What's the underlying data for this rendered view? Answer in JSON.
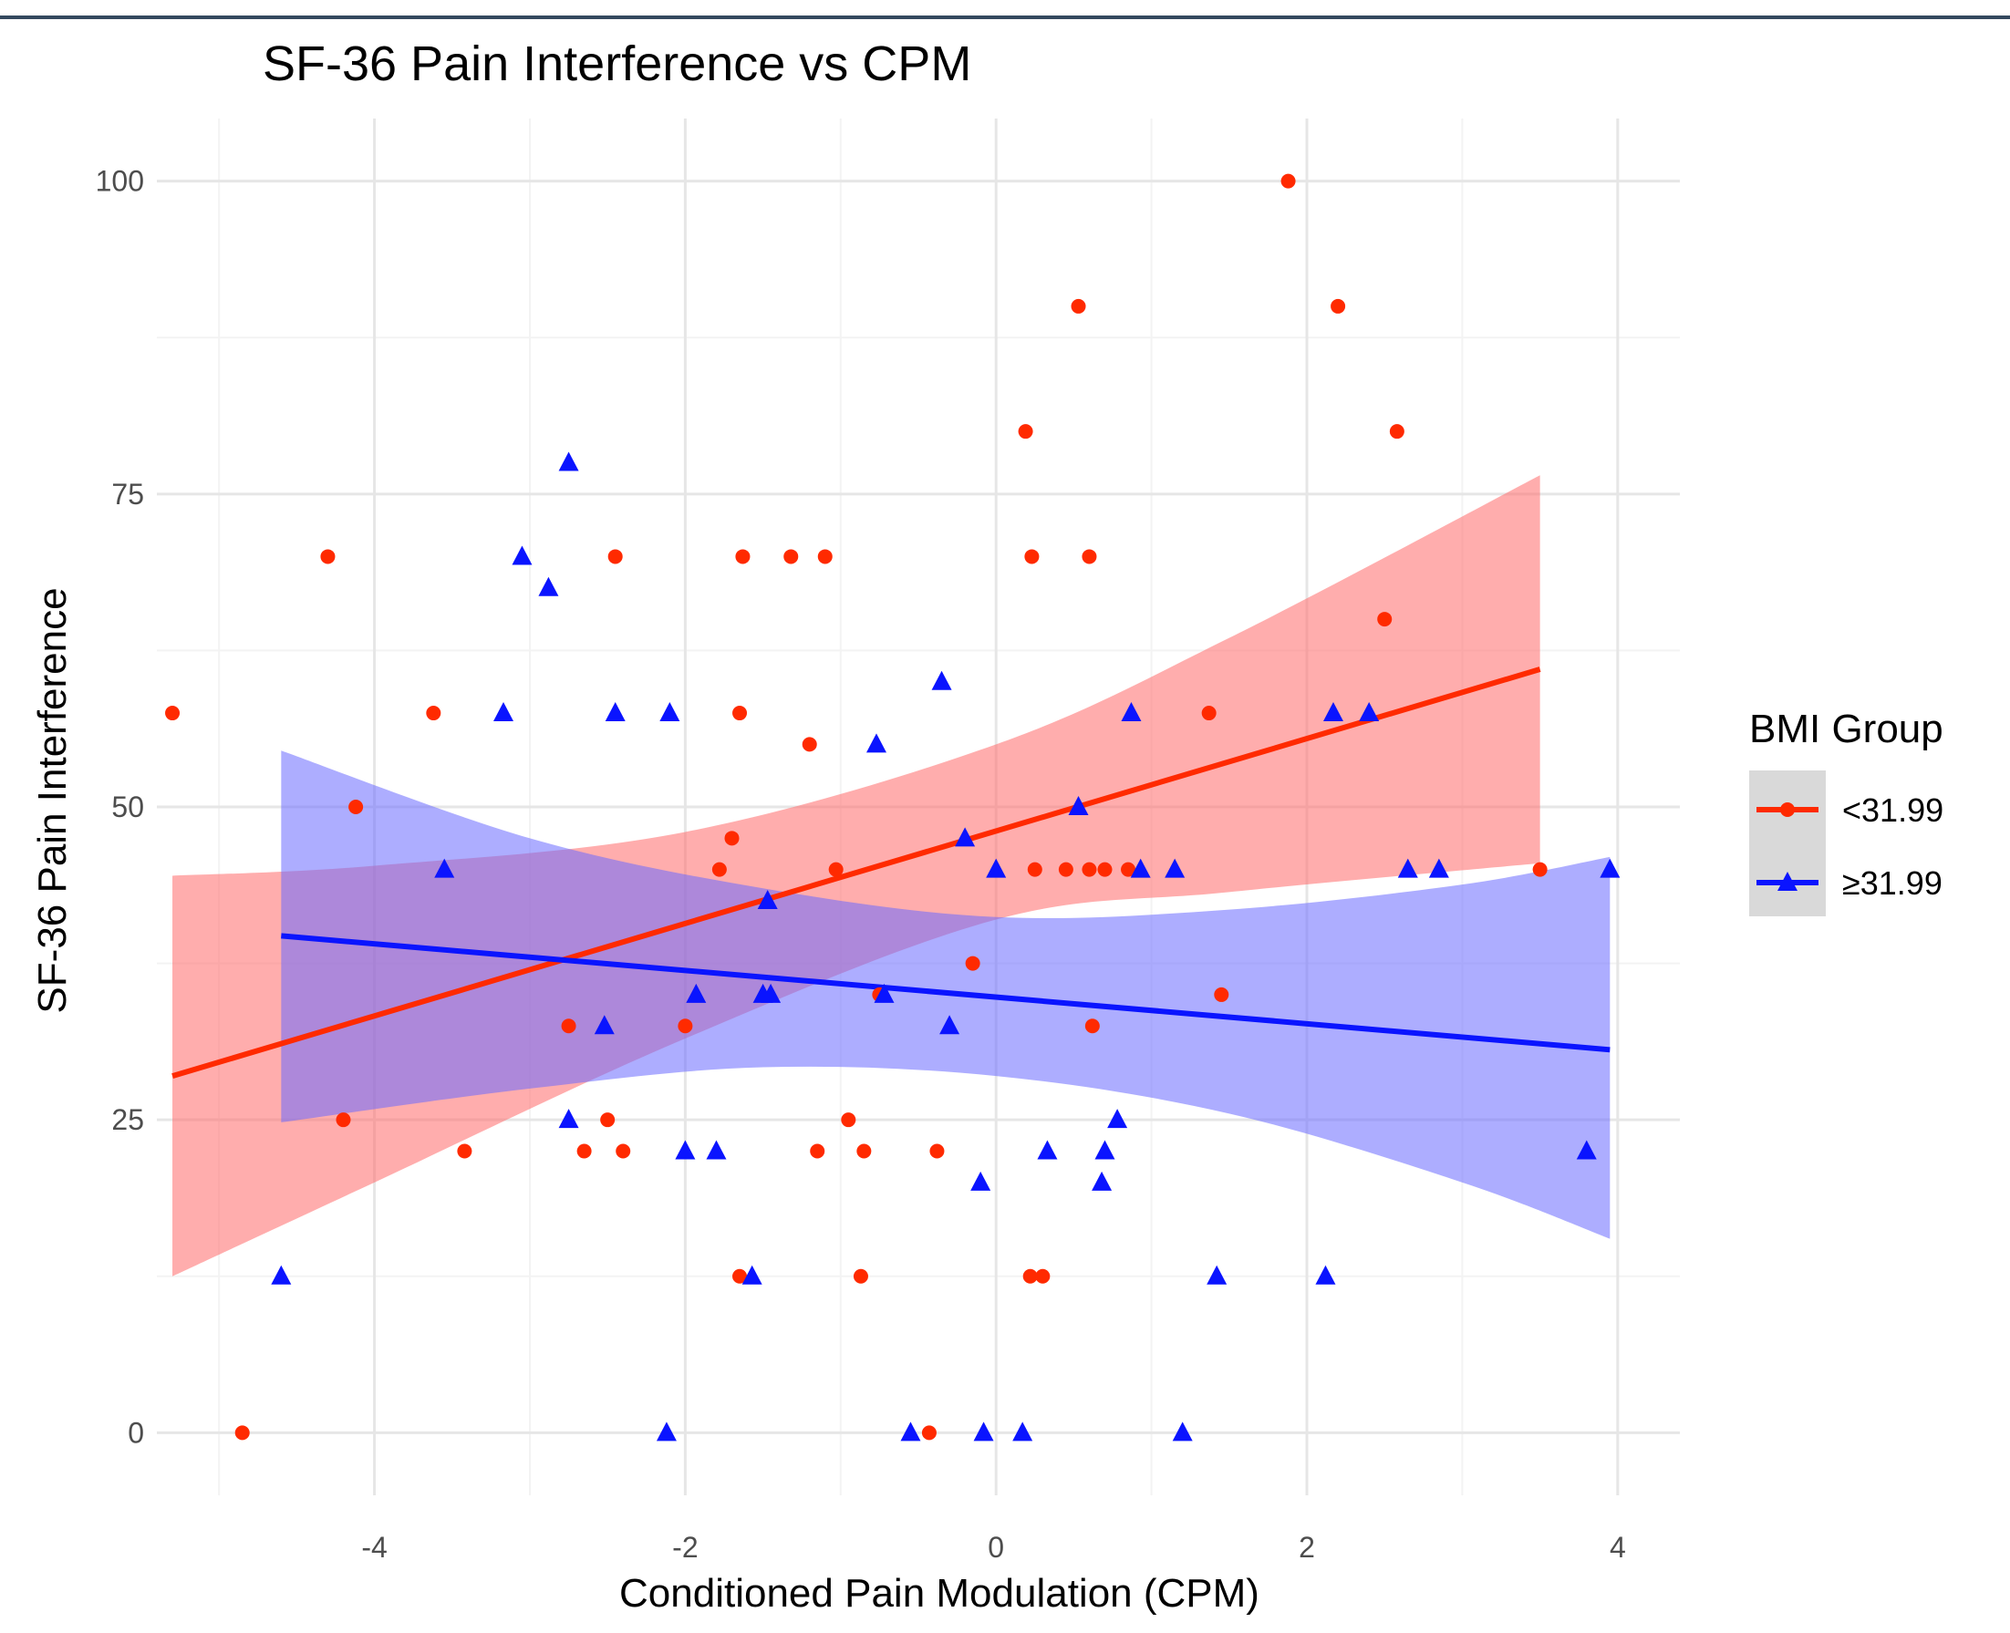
{
  "chart_data": {
    "type": "scatter",
    "title": "SF-36 Pain Interference vs CPM",
    "xlabel": "Conditioned Pain Modulation (CPM)",
    "ylabel": "SF-36 Pain Interference",
    "xlim": [
      -5.4,
      4.4
    ],
    "ylim": [
      -5,
      105
    ],
    "x_ticks": [
      -4,
      -2,
      0,
      2,
      4
    ],
    "y_ticks": [
      0,
      25,
      50,
      75,
      100
    ],
    "x_tick_labels": [
      "-4",
      "-2",
      "0",
      "2",
      "4"
    ],
    "y_tick_labels": [
      "0",
      "25",
      "50",
      "75",
      "100"
    ],
    "grid": true,
    "legend": {
      "title": "BMI Group",
      "position": "right"
    },
    "series": [
      {
        "name": "<31.99",
        "marker": "circle",
        "color": "#ff2a00",
        "band_color": "#ff6a6a",
        "points": [
          [
            -5.3,
            57.5
          ],
          [
            -4.85,
            0
          ],
          [
            -4.3,
            70
          ],
          [
            -4.2,
            25
          ],
          [
            -4.12,
            50
          ],
          [
            -3.62,
            57.5
          ],
          [
            -3.42,
            22.5
          ],
          [
            -2.75,
            32.5
          ],
          [
            -2.65,
            22.5
          ],
          [
            -2.5,
            25
          ],
          [
            -2.45,
            70
          ],
          [
            -2.4,
            22.5
          ],
          [
            -2.0,
            32.5
          ],
          [
            -1.78,
            45
          ],
          [
            -1.7,
            47.5
          ],
          [
            -1.65,
            12.5
          ],
          [
            -1.65,
            57.5
          ],
          [
            -1.63,
            70
          ],
          [
            -1.32,
            70
          ],
          [
            -1.2,
            55
          ],
          [
            -1.15,
            22.5
          ],
          [
            -1.1,
            70
          ],
          [
            -1.03,
            45
          ],
          [
            -0.95,
            25
          ],
          [
            -0.85,
            22.5
          ],
          [
            -0.87,
            12.5
          ],
          [
            -0.75,
            35
          ],
          [
            -0.43,
            0
          ],
          [
            -0.38,
            22.5
          ],
          [
            -0.15,
            37.5
          ],
          [
            0.19,
            80
          ],
          [
            0.23,
            70
          ],
          [
            0.22,
            12.5
          ],
          [
            0.25,
            45
          ],
          [
            0.3,
            12.5
          ],
          [
            0.45,
            45
          ],
          [
            0.53,
            90
          ],
          [
            0.6,
            70
          ],
          [
            0.6,
            45
          ],
          [
            0.62,
            32.5
          ],
          [
            0.7,
            45
          ],
          [
            0.85,
            45
          ],
          [
            1.37,
            57.5
          ],
          [
            1.45,
            35
          ],
          [
            1.88,
            100
          ],
          [
            2.2,
            90
          ],
          [
            2.5,
            65
          ],
          [
            2.58,
            80
          ],
          [
            3.5,
            45
          ]
        ],
        "fit": {
          "x": [
            -5.3,
            3.5
          ],
          "y": [
            28.5,
            61.0
          ]
        },
        "ci": {
          "x": [
            -5.3,
            3.5
          ],
          "upper": [
            44.5,
            76.5
          ],
          "lower": [
            12.5,
            45.5
          ],
          "curve_x": [
            -5.3,
            -4.0,
            -2.0,
            0.0,
            1.5,
            3.5
          ],
          "curve_upper": [
            44.5,
            45.3,
            48.0,
            55.0,
            63.5,
            76.5
          ],
          "curve_lower": [
            12.5,
            20.0,
            31.5,
            41.0,
            43.2,
            45.5
          ]
        }
      },
      {
        "name": "≥31.99",
        "marker": "triangle",
        "color": "#0a14ff",
        "band_color": "#6a6aff",
        "points": [
          [
            -4.6,
            12.5
          ],
          [
            -3.55,
            45
          ],
          [
            -3.17,
            57.5
          ],
          [
            -3.05,
            70
          ],
          [
            -2.88,
            67.5
          ],
          [
            -2.75,
            77.5
          ],
          [
            -2.75,
            25
          ],
          [
            -2.52,
            32.5
          ],
          [
            -2.45,
            57.5
          ],
          [
            -2.12,
            0
          ],
          [
            -2.1,
            57.5
          ],
          [
            -2.0,
            22.5
          ],
          [
            -1.93,
            35
          ],
          [
            -1.8,
            22.5
          ],
          [
            -1.57,
            12.5
          ],
          [
            -1.5,
            35
          ],
          [
            -1.47,
            42.5
          ],
          [
            -1.45,
            35
          ],
          [
            -0.77,
            55
          ],
          [
            -0.72,
            35
          ],
          [
            -0.55,
            0
          ],
          [
            -0.35,
            60
          ],
          [
            -0.3,
            32.5
          ],
          [
            -0.2,
            47.5
          ],
          [
            -0.1,
            20
          ],
          [
            -0.08,
            0
          ],
          [
            0.0,
            45
          ],
          [
            0.17,
            0
          ],
          [
            0.33,
            22.5
          ],
          [
            0.53,
            50
          ],
          [
            0.68,
            20
          ],
          [
            0.7,
            22.5
          ],
          [
            0.78,
            25
          ],
          [
            0.87,
            57.5
          ],
          [
            0.93,
            45
          ],
          [
            1.15,
            45
          ],
          [
            1.2,
            0
          ],
          [
            1.42,
            12.5
          ],
          [
            2.12,
            12.5
          ],
          [
            2.17,
            57.5
          ],
          [
            2.4,
            57.5
          ],
          [
            2.65,
            45
          ],
          [
            2.85,
            45
          ],
          [
            3.8,
            22.5
          ],
          [
            3.95,
            45
          ]
        ],
        "fit": {
          "x": [
            -4.6,
            3.95
          ],
          "y": [
            39.7,
            30.6
          ]
        },
        "ci": {
          "x": [
            -4.6,
            3.95
          ],
          "curve_x": [
            -4.6,
            -3.0,
            -1.5,
            0.0,
            1.5,
            3.0,
            3.95
          ],
          "curve_upper": [
            54.5,
            47.5,
            43.5,
            41.2,
            41.8,
            43.8,
            46.0
          ],
          "curve_lower": [
            24.8,
            27.5,
            29.2,
            28.5,
            25.5,
            20.0,
            15.5
          ]
        }
      }
    ]
  }
}
